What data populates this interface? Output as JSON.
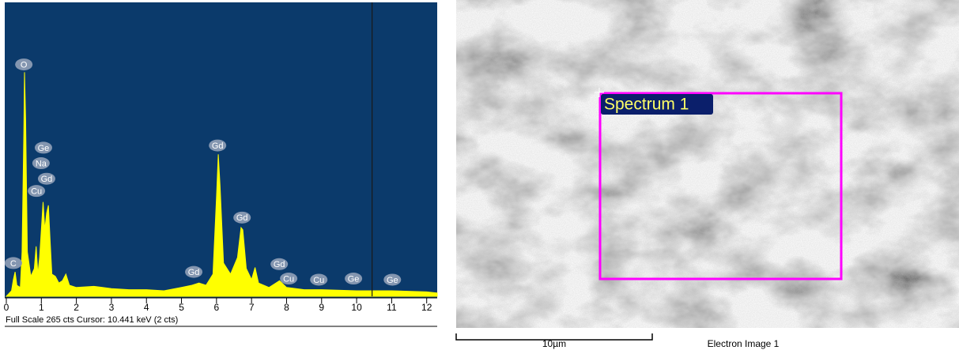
{
  "chart_data": {
    "type": "area",
    "color": "#ffff00",
    "background": "#0b3a6b",
    "x": [
      0.0,
      0.15,
      0.2,
      0.25,
      0.3,
      0.4,
      0.45,
      0.5,
      0.52,
      0.55,
      0.6,
      0.7,
      0.8,
      0.85,
      0.9,
      0.95,
      1.0,
      1.05,
      1.1,
      1.15,
      1.2,
      1.25,
      1.3,
      1.4,
      1.5,
      1.6,
      1.7,
      1.8,
      2.0,
      2.5,
      3.0,
      3.5,
      4.0,
      4.5,
      5.0,
      5.3,
      5.5,
      5.7,
      5.9,
      6.0,
      6.05,
      6.1,
      6.2,
      6.4,
      6.6,
      6.7,
      6.75,
      6.85,
      7.0,
      7.1,
      7.2,
      7.5,
      7.8,
      8.0,
      8.5,
      9.0,
      10.0,
      11.0,
      12.0,
      12.3
    ],
    "values": [
      0,
      5,
      15,
      22,
      10,
      8,
      40,
      150,
      202,
      160,
      40,
      18,
      25,
      45,
      20,
      35,
      60,
      85,
      60,
      75,
      82,
      50,
      20,
      18,
      12,
      14,
      20,
      10,
      8,
      9,
      7,
      6,
      6,
      5,
      8,
      10,
      12,
      10,
      20,
      90,
      128,
      100,
      30,
      20,
      35,
      62,
      60,
      25,
      15,
      26,
      12,
      8,
      14,
      8,
      6,
      6,
      5,
      5,
      4,
      3
    ],
    "xlim": [
      0,
      12.3
    ],
    "ylim": [
      0,
      265
    ],
    "xticks": [
      0,
      1,
      2,
      3,
      4,
      5,
      6,
      7,
      8,
      9,
      10,
      11,
      12
    ],
    "cursor_x": 10.441,
    "status_text": "Full Scale 265 cts  Cursor: 10.441 keV (2 cts)",
    "annotations": [
      {
        "text": "O",
        "x": 0.5,
        "y": 209
      },
      {
        "text": "Ge",
        "x": 1.06,
        "y": 134
      },
      {
        "text": "Na",
        "x": 0.99,
        "y": 120
      },
      {
        "text": "Gd",
        "x": 1.15,
        "y": 106
      },
      {
        "text": "Cu",
        "x": 0.86,
        "y": 95
      },
      {
        "text": "C",
        "x": 0.2,
        "y": 30
      },
      {
        "text": "Gd",
        "x": 6.03,
        "y": 136
      },
      {
        "text": "Gd",
        "x": 6.73,
        "y": 71
      },
      {
        "text": "Gd",
        "x": 5.35,
        "y": 22
      },
      {
        "text": "Gd",
        "x": 7.79,
        "y": 29
      },
      {
        "text": "Cu",
        "x": 8.06,
        "y": 16
      },
      {
        "text": "Cu",
        "x": 8.92,
        "y": 15
      },
      {
        "text": "Ge",
        "x": 9.91,
        "y": 16
      },
      {
        "text": "Ge",
        "x": 11.02,
        "y": 15
      }
    ]
  },
  "image": {
    "region_label": "Spectrum 1",
    "scale_bar": "10µm",
    "caption": "Electron Image 1"
  }
}
